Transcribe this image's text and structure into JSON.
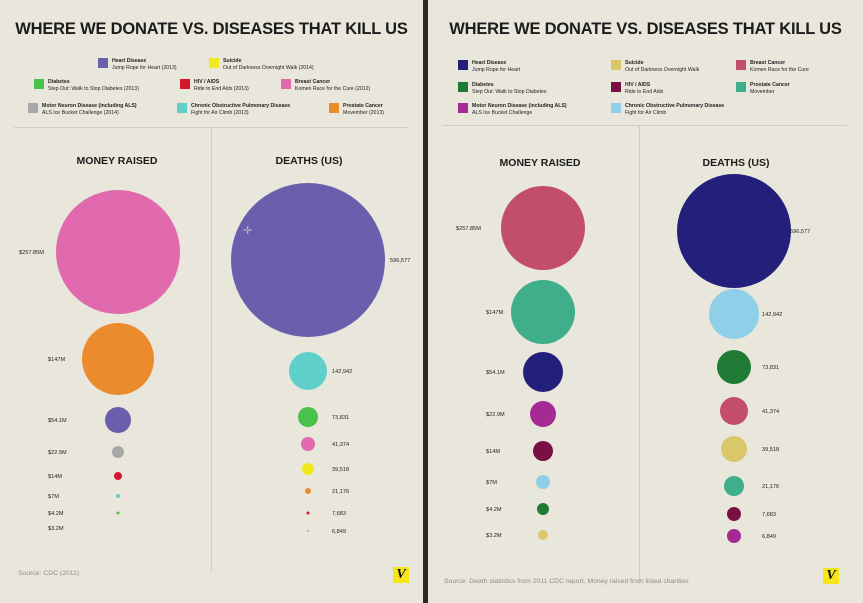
{
  "chart_data": [
    {
      "type": "bubble",
      "title": "WHERE WE DONATE VS. DISEASES THAT KILL US",
      "panels": [
        {
          "title": "MONEY RAISED",
          "values": [
            {
              "label": "$257.85M",
              "value": 257.85,
              "color": "#e06aad"
            },
            {
              "label": "$147M",
              "value": 147,
              "color": "#ec8b2c"
            },
            {
              "label": "$54.1M",
              "value": 54.1,
              "color": "#6a5fac"
            },
            {
              "label": "$22.9M",
              "value": 22.9,
              "color": "#a8a8a8"
            },
            {
              "label": "$14M",
              "value": 14,
              "color": "#d4172e"
            },
            {
              "label": "$7M",
              "value": 7,
              "color": "#5fcfcc"
            },
            {
              "label": "$4.2M",
              "value": 4.2,
              "color": "#4ac14a"
            },
            {
              "label": "$3.2M",
              "value": 3.2,
              "color": "#e8e24a"
            }
          ]
        },
        {
          "title": "DEATHS (US)",
          "values": [
            {
              "label": "596,577",
              "value": 596577,
              "color": "#6a5fac"
            },
            {
              "label": "142,942",
              "value": 142942,
              "color": "#5fcfcc"
            },
            {
              "label": "73,831",
              "value": 73831,
              "color": "#4ac14a"
            },
            {
              "label": "41,374",
              "value": 41374,
              "color": "#e06aad"
            },
            {
              "label": "39,518",
              "value": 39518,
              "color": "#f0ea1a"
            },
            {
              "label": "21,176",
              "value": 21176,
              "color": "#ec8b2c"
            },
            {
              "label": "7,683",
              "value": 7683,
              "color": "#d4172e"
            },
            {
              "label": "6,849",
              "value": 6849,
              "color": "#a8a8a8"
            }
          ]
        }
      ],
      "legend": [
        {
          "name": "Heart Disease",
          "event": "Jump Rope for Heart (2013)",
          "color": "#6a5fac"
        },
        {
          "name": "Suicide",
          "event": "Out of Darkness Overnight Walk (2014)",
          "color": "#f0ea1a"
        },
        {
          "name": "Diabetes",
          "event": "Step Out: Walk to Stop Diabetes (2013)",
          "color": "#4ac14a"
        },
        {
          "name": "HIV / AIDS",
          "event": "Ride to End Aids (2013)",
          "color": "#d4172e"
        },
        {
          "name": "Breast Cancer",
          "event": "Komen Race for the Cure (2012)",
          "color": "#e06aad"
        },
        {
          "name": "Motor Neuron Disease (including ALS)",
          "event": "ALS Ice Bucket Challenge (2014)",
          "color": "#a8a8a8"
        },
        {
          "name": "Chronic Obstructive Pulmonary Disease",
          "event": "Fight for Air Climb (2013)",
          "color": "#5fcfcc"
        },
        {
          "name": "Prostate Cancer",
          "event": "Movember (2013)",
          "color": "#ec8b2c"
        }
      ],
      "source": "Source: CDC (2011)",
      "logo": "V"
    },
    {
      "type": "bubble",
      "title": "WHERE WE DONATE VS. DISEASES THAT KILL US",
      "panels": [
        {
          "title": "MONEY RAISED",
          "values": [
            {
              "label": "$257.85M",
              "value": 257.85,
              "color": "#c34e6a"
            },
            {
              "label": "$147M",
              "value": 147,
              "color": "#3fae8a"
            },
            {
              "label": "$54.1M",
              "value": 54.1,
              "color": "#22207a"
            },
            {
              "label": "$22.9M",
              "value": 22.9,
              "color": "#a32b93"
            },
            {
              "label": "$14M",
              "value": 14,
              "color": "#7a0f45"
            },
            {
              "label": "$7M",
              "value": 7,
              "color": "#8fcfe8"
            },
            {
              "label": "$4.2M",
              "value": 4.2,
              "color": "#1f7a36"
            },
            {
              "label": "$3.2M",
              "value": 3.2,
              "color": "#d9c76a"
            }
          ]
        },
        {
          "title": "DEATHS (US)",
          "values": [
            {
              "label": "596,577",
              "value": 596577,
              "color": "#22207a"
            },
            {
              "label": "142,942",
              "value": 142942,
              "color": "#8fcfe8"
            },
            {
              "label": "73,831",
              "value": 73831,
              "color": "#1f7a36"
            },
            {
              "label": "41,374",
              "value": 41374,
              "color": "#c34e6a"
            },
            {
              "label": "39,518",
              "value": 39518,
              "color": "#d9c76a"
            },
            {
              "label": "21,176",
              "value": 21176,
              "color": "#3fae8a"
            },
            {
              "label": "7,683",
              "value": 7683,
              "color": "#7a0f45"
            },
            {
              "label": "6,849",
              "value": 6849,
              "color": "#a32b93"
            }
          ]
        }
      ],
      "legend": [
        {
          "name": "Heart Disease",
          "event": "Jump Rope for Heart",
          "color": "#22207a"
        },
        {
          "name": "Suicide",
          "event": "Out of Darkness Overnight Walk",
          "color": "#d9c76a"
        },
        {
          "name": "Breast Cancer",
          "event": "Komen Race for the Cure",
          "color": "#c34e6a"
        },
        {
          "name": "Diabetes",
          "event": "Step Out: Walk to Stop Diabetes",
          "color": "#1f7a36"
        },
        {
          "name": "HIV / AIDS",
          "event": "Ride to End Aids",
          "color": "#7a0f45"
        },
        {
          "name": "Prostate Cancer",
          "event": "Movember",
          "color": "#3fae8a"
        },
        {
          "name": "Motor Neuron Disease (including ALS)",
          "event": "ALS Ice Bucket Challenge",
          "color": "#a32b93"
        },
        {
          "name": "Chronic Obstructive Pulmonary Disease",
          "event": "Fight for Air Climb",
          "color": "#8fcfe8"
        }
      ],
      "source": "Source: Death statistics from 2011 CDC report, Money raised from listed charities",
      "logo": "V"
    }
  ]
}
